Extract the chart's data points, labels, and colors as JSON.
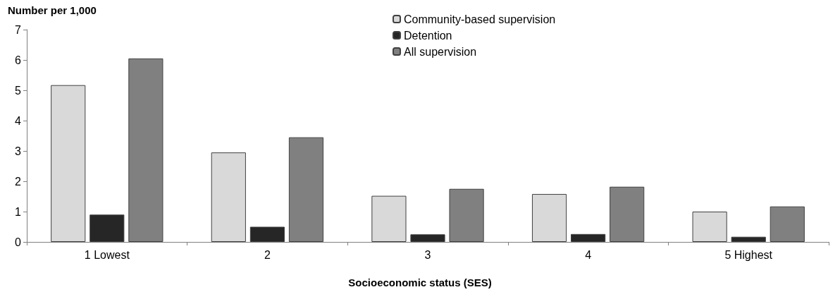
{
  "chart_data": {
    "type": "bar",
    "ylabel": "Number per 1,000",
    "xlabel": "Socioeconomic status (SES)",
    "categories": [
      "1 Lowest",
      "2",
      "3",
      "4",
      "5 Highest"
    ],
    "series": [
      {
        "name": "Community-based supervision",
        "color": "#d9d9d9",
        "values": [
          5.17,
          2.95,
          1.52,
          1.58,
          1.0
        ]
      },
      {
        "name": "Detention",
        "color": "#262626",
        "values": [
          0.9,
          0.5,
          0.25,
          0.26,
          0.17
        ]
      },
      {
        "name": "All supervision",
        "color": "#808080",
        "values": [
          6.05,
          3.45,
          1.75,
          1.82,
          1.17
        ]
      }
    ],
    "ylim": [
      0,
      7
    ],
    "yticks": [
      0,
      1,
      2,
      3,
      4,
      5,
      6,
      7
    ],
    "grid": false,
    "legend": "top"
  }
}
